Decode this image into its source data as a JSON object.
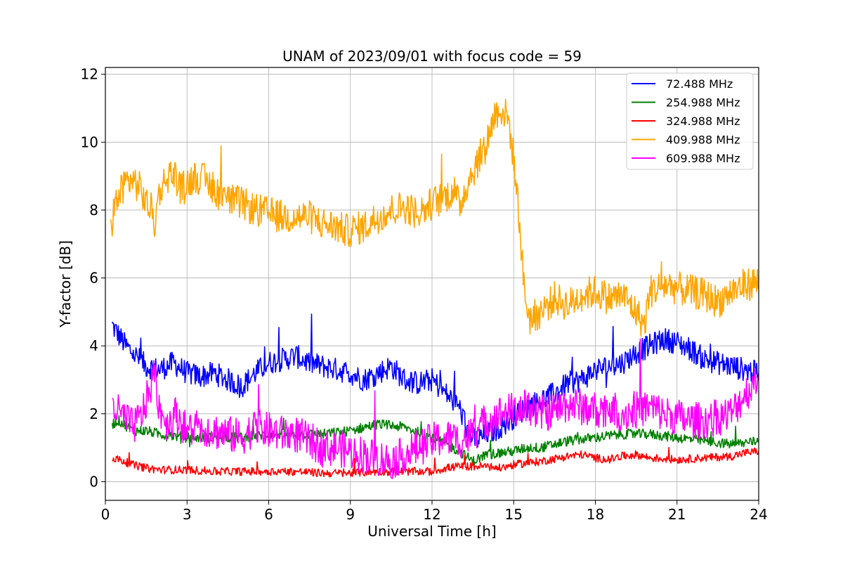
{
  "chart_data": {
    "type": "line",
    "title": "UNAM of 2023/09/01 with focus code = 59",
    "xlabel": "Universal Time [h]",
    "ylabel": "Y-factor [dB]",
    "xlim": [
      0,
      24
    ],
    "ylim": [
      -0.55,
      12.2
    ],
    "xticks": [
      0,
      3,
      6,
      9,
      12,
      15,
      18,
      21,
      24
    ],
    "yticks": [
      0,
      2,
      4,
      6,
      8,
      10,
      12
    ],
    "grid": true,
    "legend_position": "top-right",
    "series": [
      {
        "name": " 72.488 MHz",
        "color": "#0000ff",
        "x": [
          0.25,
          0.5,
          0.75,
          1,
          1.5,
          2,
          2.5,
          3,
          3.5,
          4,
          4.5,
          5,
          5.5,
          6,
          6.5,
          7,
          7.5,
          8,
          8.5,
          9,
          9.5,
          10,
          10.5,
          11,
          11.5,
          12,
          12.5,
          13,
          13.3,
          13.6,
          14,
          14.5,
          15,
          15.5,
          16,
          16.5,
          17,
          17.5,
          18,
          18.5,
          19,
          19.5,
          20,
          20.5,
          21,
          21.5,
          22,
          22.5,
          23,
          23.5,
          24
        ],
        "y": [
          4.6,
          4.3,
          4.0,
          3.8,
          3.4,
          3.3,
          3.5,
          3.2,
          3.1,
          3.2,
          3.0,
          2.8,
          3.2,
          3.5,
          3.6,
          3.7,
          3.5,
          3.4,
          3.3,
          3.2,
          3.0,
          3.2,
          3.4,
          3.0,
          2.9,
          3.0,
          2.6,
          2.2,
          1.5,
          1.2,
          1.4,
          1.6,
          1.9,
          2.2,
          2.4,
          2.6,
          2.9,
          3.0,
          3.3,
          3.4,
          3.5,
          3.8,
          4.0,
          4.2,
          4.1,
          3.9,
          3.6,
          3.5,
          3.4,
          3.3,
          3.2
        ]
      },
      {
        "name": "254.988 MHz",
        "color": "#008000",
        "x": [
          0.25,
          0.5,
          1,
          1.5,
          2,
          3,
          4,
          5,
          6,
          7,
          8,
          9,
          9.5,
          10,
          11,
          12,
          13,
          13.5,
          14,
          15,
          15.5,
          16,
          17,
          18,
          19,
          20,
          21,
          22,
          23,
          24
        ],
        "y": [
          1.7,
          1.8,
          1.5,
          1.5,
          1.4,
          1.3,
          1.3,
          1.3,
          1.4,
          1.4,
          1.4,
          1.5,
          1.6,
          1.7,
          1.6,
          1.3,
          0.9,
          0.6,
          0.8,
          0.9,
          1.0,
          1.0,
          1.2,
          1.3,
          1.4,
          1.4,
          1.3,
          1.2,
          1.1,
          1.2
        ]
      },
      {
        "name": "324.988 MHz",
        "color": "#ff0000",
        "x": [
          0.25,
          0.5,
          1,
          1.5,
          2,
          3,
          4,
          5,
          6,
          7,
          8,
          9,
          10,
          11,
          12,
          12.5,
          13,
          14,
          14.5,
          15,
          15.5,
          16,
          17,
          17.5,
          18,
          18.5,
          19,
          19.5,
          20,
          21,
          22,
          23,
          23.5,
          24
        ],
        "y": [
          0.7,
          0.65,
          0.5,
          0.4,
          0.35,
          0.35,
          0.3,
          0.3,
          0.3,
          0.3,
          0.25,
          0.25,
          0.3,
          0.3,
          0.3,
          0.4,
          0.45,
          0.45,
          0.4,
          0.5,
          0.55,
          0.6,
          0.75,
          0.8,
          0.7,
          0.65,
          0.75,
          0.8,
          0.7,
          0.65,
          0.7,
          0.75,
          0.85,
          0.9
        ]
      },
      {
        "name": "409.988 MHz",
        "color": "#ffa500",
        "x": [
          0.2,
          0.3,
          0.5,
          0.7,
          1,
          1.3,
          1.5,
          1.7,
          1.8,
          2,
          2.3,
          2.5,
          2.8,
          3,
          3.3,
          3.6,
          4,
          4.5,
          5,
          5.5,
          6,
          6.5,
          7,
          7.5,
          8,
          8.5,
          8.8,
          9,
          9.5,
          10,
          10.5,
          11,
          11.5,
          12,
          12.5,
          12.8,
          13,
          13.3,
          13.6,
          14,
          14.3,
          14.5,
          14.8,
          15,
          15.2,
          15.4,
          15.6,
          16,
          16.5,
          17,
          17.5,
          18,
          18.5,
          19,
          19.5,
          19.8,
          20,
          20.3,
          20.6,
          21,
          21.5,
          22,
          22.5,
          23,
          23.5,
          24
        ],
        "y": [
          7.3,
          8.0,
          8.4,
          8.8,
          8.9,
          8.6,
          8.2,
          8.0,
          7.6,
          8.6,
          9.0,
          9.1,
          8.6,
          8.8,
          9.0,
          8.9,
          8.6,
          8.3,
          8.2,
          8.0,
          7.9,
          7.8,
          7.8,
          7.8,
          7.6,
          7.5,
          7.4,
          7.4,
          7.5,
          7.8,
          8.0,
          8.1,
          7.9,
          8.2,
          8.4,
          8.6,
          8.1,
          8.8,
          9.3,
          10.0,
          10.8,
          11.0,
          10.7,
          9.5,
          7.8,
          5.5,
          4.8,
          5.0,
          5.4,
          5.2,
          5.5,
          5.6,
          5.4,
          5.5,
          5.0,
          4.6,
          5.6,
          5.7,
          5.8,
          5.7,
          5.6,
          5.5,
          5.3,
          5.6,
          5.8,
          5.9
        ]
      },
      {
        "name": "609.988 MHz",
        "color": "#ff00ff",
        "x": [
          0.25,
          0.5,
          0.8,
          1,
          1.3,
          1.6,
          1.8,
          2,
          2.3,
          2.6,
          3,
          3.5,
          4,
          4.5,
          5,
          5.5,
          6,
          6.5,
          7,
          7.5,
          8,
          8.5,
          9,
          9.5,
          10,
          10.5,
          11,
          11.5,
          12,
          12.5,
          13,
          13.5,
          14,
          14.5,
          15,
          15.5,
          16,
          16.5,
          17,
          17.5,
          18,
          18.5,
          19,
          19.5,
          20,
          20.5,
          21,
          21.5,
          22,
          22.5,
          23,
          23.5,
          24
        ],
        "y": [
          2.3,
          2.0,
          1.8,
          1.6,
          1.9,
          2.6,
          3.2,
          2.1,
          1.7,
          2.0,
          1.5,
          1.6,
          1.5,
          1.4,
          1.3,
          1.6,
          1.5,
          1.4,
          1.4,
          1.2,
          1.0,
          1.0,
          0.9,
          0.8,
          0.7,
          0.6,
          0.8,
          1.0,
          1.2,
          1.3,
          1.2,
          1.4,
          1.8,
          2.0,
          2.1,
          2.2,
          2.0,
          2.1,
          2.3,
          2.2,
          2.1,
          2.2,
          2.0,
          2.1,
          2.2,
          2.0,
          1.9,
          1.8,
          1.8,
          1.9,
          2.0,
          2.6,
          3.0
        ]
      }
    ]
  }
}
